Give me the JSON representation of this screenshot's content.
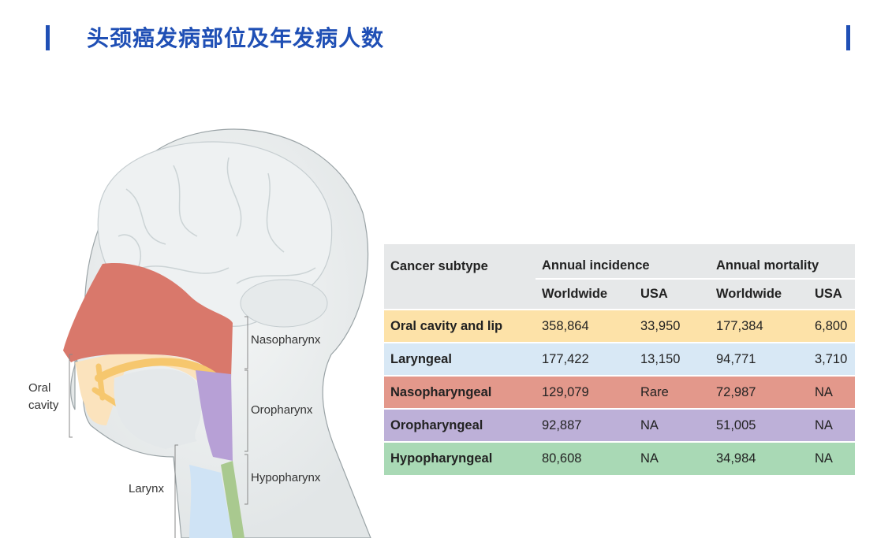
{
  "title": "头颈癌发病部位及年发病人数",
  "accent_color": "#1f4fb5",
  "diagram": {
    "labels": {
      "nasopharynx": "Nasopharynx",
      "oropharynx": "Oropharynx",
      "hypopharynx": "Hypopharynx",
      "oral_cavity_line1": "Oral",
      "oral_cavity_line2": "cavity",
      "larynx": "Larynx"
    },
    "region_colors": {
      "nasal": "#d9786b",
      "oral": "#f6c76e",
      "oropharynx": "#b7a0d6",
      "larynx": "#cfe3f5",
      "hypopharynx": "#a9c98f"
    }
  },
  "table": {
    "header": {
      "subtype": "Cancer subtype",
      "incidence": "Annual incidence",
      "mortality": "Annual mortality",
      "worldwide": "Worldwide",
      "usa": "USA"
    },
    "rows": [
      {
        "subtype": "Oral cavity and lip",
        "inc_world": "358,864",
        "inc_usa": "33,950",
        "mort_world": "177,384",
        "mort_usa": "6,800",
        "color": "#fde2a8"
      },
      {
        "subtype": "Laryngeal",
        "inc_world": "177,422",
        "inc_usa": "13,150",
        "mort_world": "94,771",
        "mort_usa": "3,710",
        "color": "#d8e8f5"
      },
      {
        "subtype": "Nasopharyngeal",
        "inc_world": "129,079",
        "inc_usa": "Rare",
        "mort_world": "72,987",
        "mort_usa": "NA",
        "color": "#e3988b"
      },
      {
        "subtype": "Oropharyngeal",
        "inc_world": "92,887",
        "inc_usa": "NA",
        "mort_world": "51,005",
        "mort_usa": "NA",
        "color": "#bdb0d8"
      },
      {
        "subtype": "Hypopharyngeal",
        "inc_world": "80,608",
        "inc_usa": "NA",
        "mort_world": "34,984",
        "mort_usa": "NA",
        "color": "#a9d9b5"
      }
    ]
  }
}
